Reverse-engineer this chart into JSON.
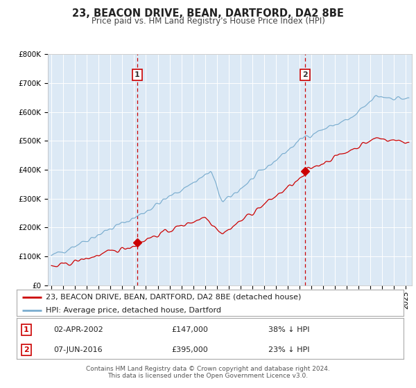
{
  "title": "23, BEACON DRIVE, BEAN, DARTFORD, DA2 8BE",
  "subtitle": "Price paid vs. HM Land Registry's House Price Index (HPI)",
  "bg_color": "#dce9f5",
  "fig_bg_color": "#ffffff",
  "red_line_color": "#cc0000",
  "blue_line_color": "#7aadcf",
  "marker_color": "#cc0000",
  "dashed_line_color": "#cc0000",
  "grid_color": "#ffffff",
  "ylim": [
    0,
    800000
  ],
  "xlim_start": 1994.7,
  "xlim_end": 2025.5,
  "yticks": [
    0,
    100000,
    200000,
    300000,
    400000,
    500000,
    600000,
    700000,
    800000
  ],
  "ytick_labels": [
    "£0",
    "£100K",
    "£200K",
    "£300K",
    "£400K",
    "£500K",
    "£600K",
    "£700K",
    "£800K"
  ],
  "sale1_x": 2002.25,
  "sale1_y": 147000,
  "sale2_x": 2016.44,
  "sale2_y": 395000,
  "legend_entries": [
    "23, BEACON DRIVE, BEAN, DARTFORD, DA2 8BE (detached house)",
    "HPI: Average price, detached house, Dartford"
  ],
  "footnote1": "Contains HM Land Registry data © Crown copyright and database right 2024.",
  "footnote2": "This data is licensed under the Open Government Licence v3.0.",
  "table_rows": [
    {
      "num": "1",
      "date": "02-APR-2002",
      "price": "£147,000",
      "pct": "38% ↓ HPI"
    },
    {
      "num": "2",
      "date": "07-JUN-2016",
      "price": "£395,000",
      "pct": "23% ↓ HPI"
    }
  ],
  "title_fontsize": 10.5,
  "subtitle_fontsize": 8.5,
  "tick_fontsize": 7.5,
  "legend_fontsize": 8,
  "table_fontsize": 8,
  "footnote_fontsize": 6.5
}
